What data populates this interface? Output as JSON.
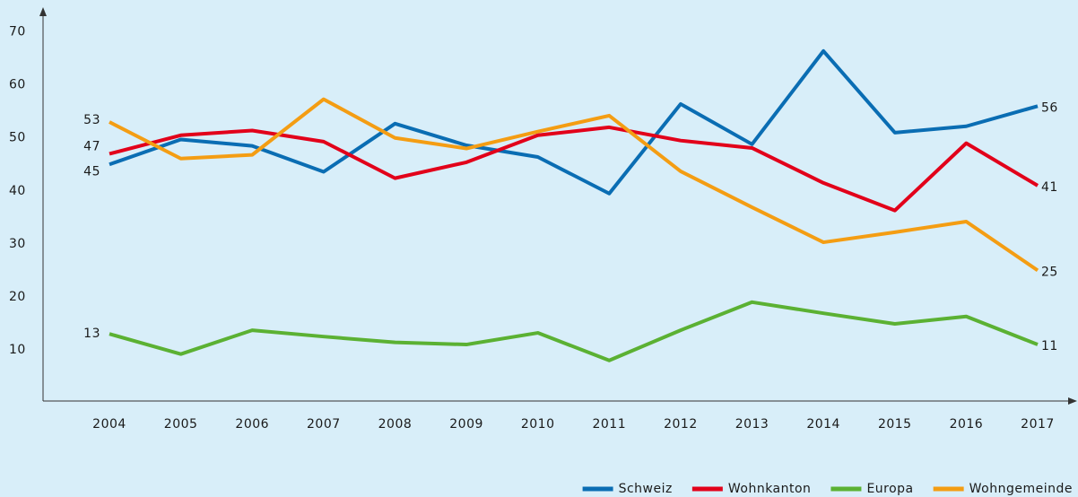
{
  "chart_data": {
    "type": "line",
    "x": [
      2004,
      2005,
      2006,
      2007,
      2008,
      2009,
      2010,
      2011,
      2012,
      2013,
      2014,
      2015,
      2016,
      2017
    ],
    "xlim": [
      2004,
      2017
    ],
    "ylim": [
      0,
      74
    ],
    "yticks": [
      10,
      20,
      30,
      40,
      50,
      60,
      70
    ],
    "series": [
      {
        "name": "Schweiz",
        "color": "#0a6db3",
        "values": [
          45,
          49.7,
          48.5,
          43.6,
          52.7,
          48.6,
          46.4,
          39.5,
          56.4,
          48.8,
          66.4,
          51,
          52.2,
          56
        ]
      },
      {
        "name": "Wohnkanton",
        "color": "#e2001a",
        "values": [
          47,
          50.5,
          51.4,
          49.3,
          42.4,
          45.4,
          50.5,
          52,
          49.5,
          48.1,
          41.5,
          36.3,
          49,
          41
        ]
      },
      {
        "name": "Europa",
        "color": "#5bb133",
        "values": [
          13,
          9.2,
          13.7,
          12.5,
          11.4,
          11,
          13.2,
          8,
          13.7,
          19,
          16.9,
          14.9,
          16.3,
          11
        ]
      },
      {
        "name": "Wohngemeinde",
        "color": "#f49d13",
        "values": [
          53,
          46.1,
          46.8,
          57.3,
          50,
          48,
          51.2,
          54.2,
          43.7,
          36.9,
          30.3,
          32.2,
          34.2,
          25
        ]
      }
    ]
  }
}
